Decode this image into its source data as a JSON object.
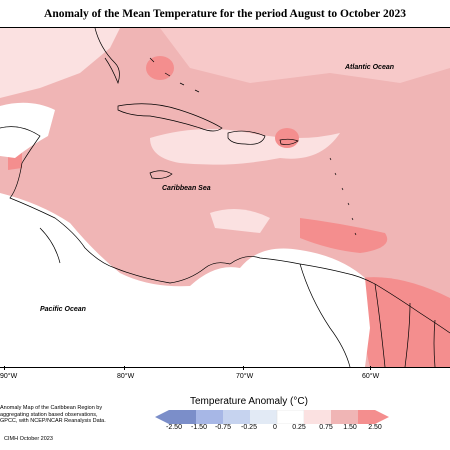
{
  "title": "Anomaly of the Mean Temperature for the period August to October 2023",
  "map": {
    "ocean_labels": {
      "atlantic": "Atlantic Ocean",
      "caribbean": "Caribbean Sea",
      "pacific": "Pacific Ocean"
    },
    "longitude_labels": [
      "90°W",
      "80°W",
      "70°W",
      "60°W"
    ],
    "colors": {
      "land_neutral": "#ffffff",
      "anomaly_0_25_0_75": "#fbe1e1",
      "anomaly_0_75_1_50": "#f0b5b5",
      "anomaly_1_50_2_50": "#f48e8e",
      "coastline": "#000000"
    }
  },
  "legend": {
    "title": "Temperature Anomaly (°C)",
    "ticks": [
      "-2.50",
      "-1.50",
      "-0.75",
      "-0.25",
      "0",
      "0.25",
      "0.75",
      "1.50",
      "2.50"
    ],
    "colors": [
      "#7b8ec9",
      "#a7b7e6",
      "#c6d3ef",
      "#e2eaf5",
      "#ffffff",
      "#fbe1e1",
      "#f0b5b5",
      "#f48e8e"
    ]
  },
  "footnote": {
    "text": "Anomaly Map of the Caribbean Region by aggregating station based observations, GPCC, with NCEP/NCAR Reanalysis Data.",
    "credit": "CIMH October 2023"
  }
}
